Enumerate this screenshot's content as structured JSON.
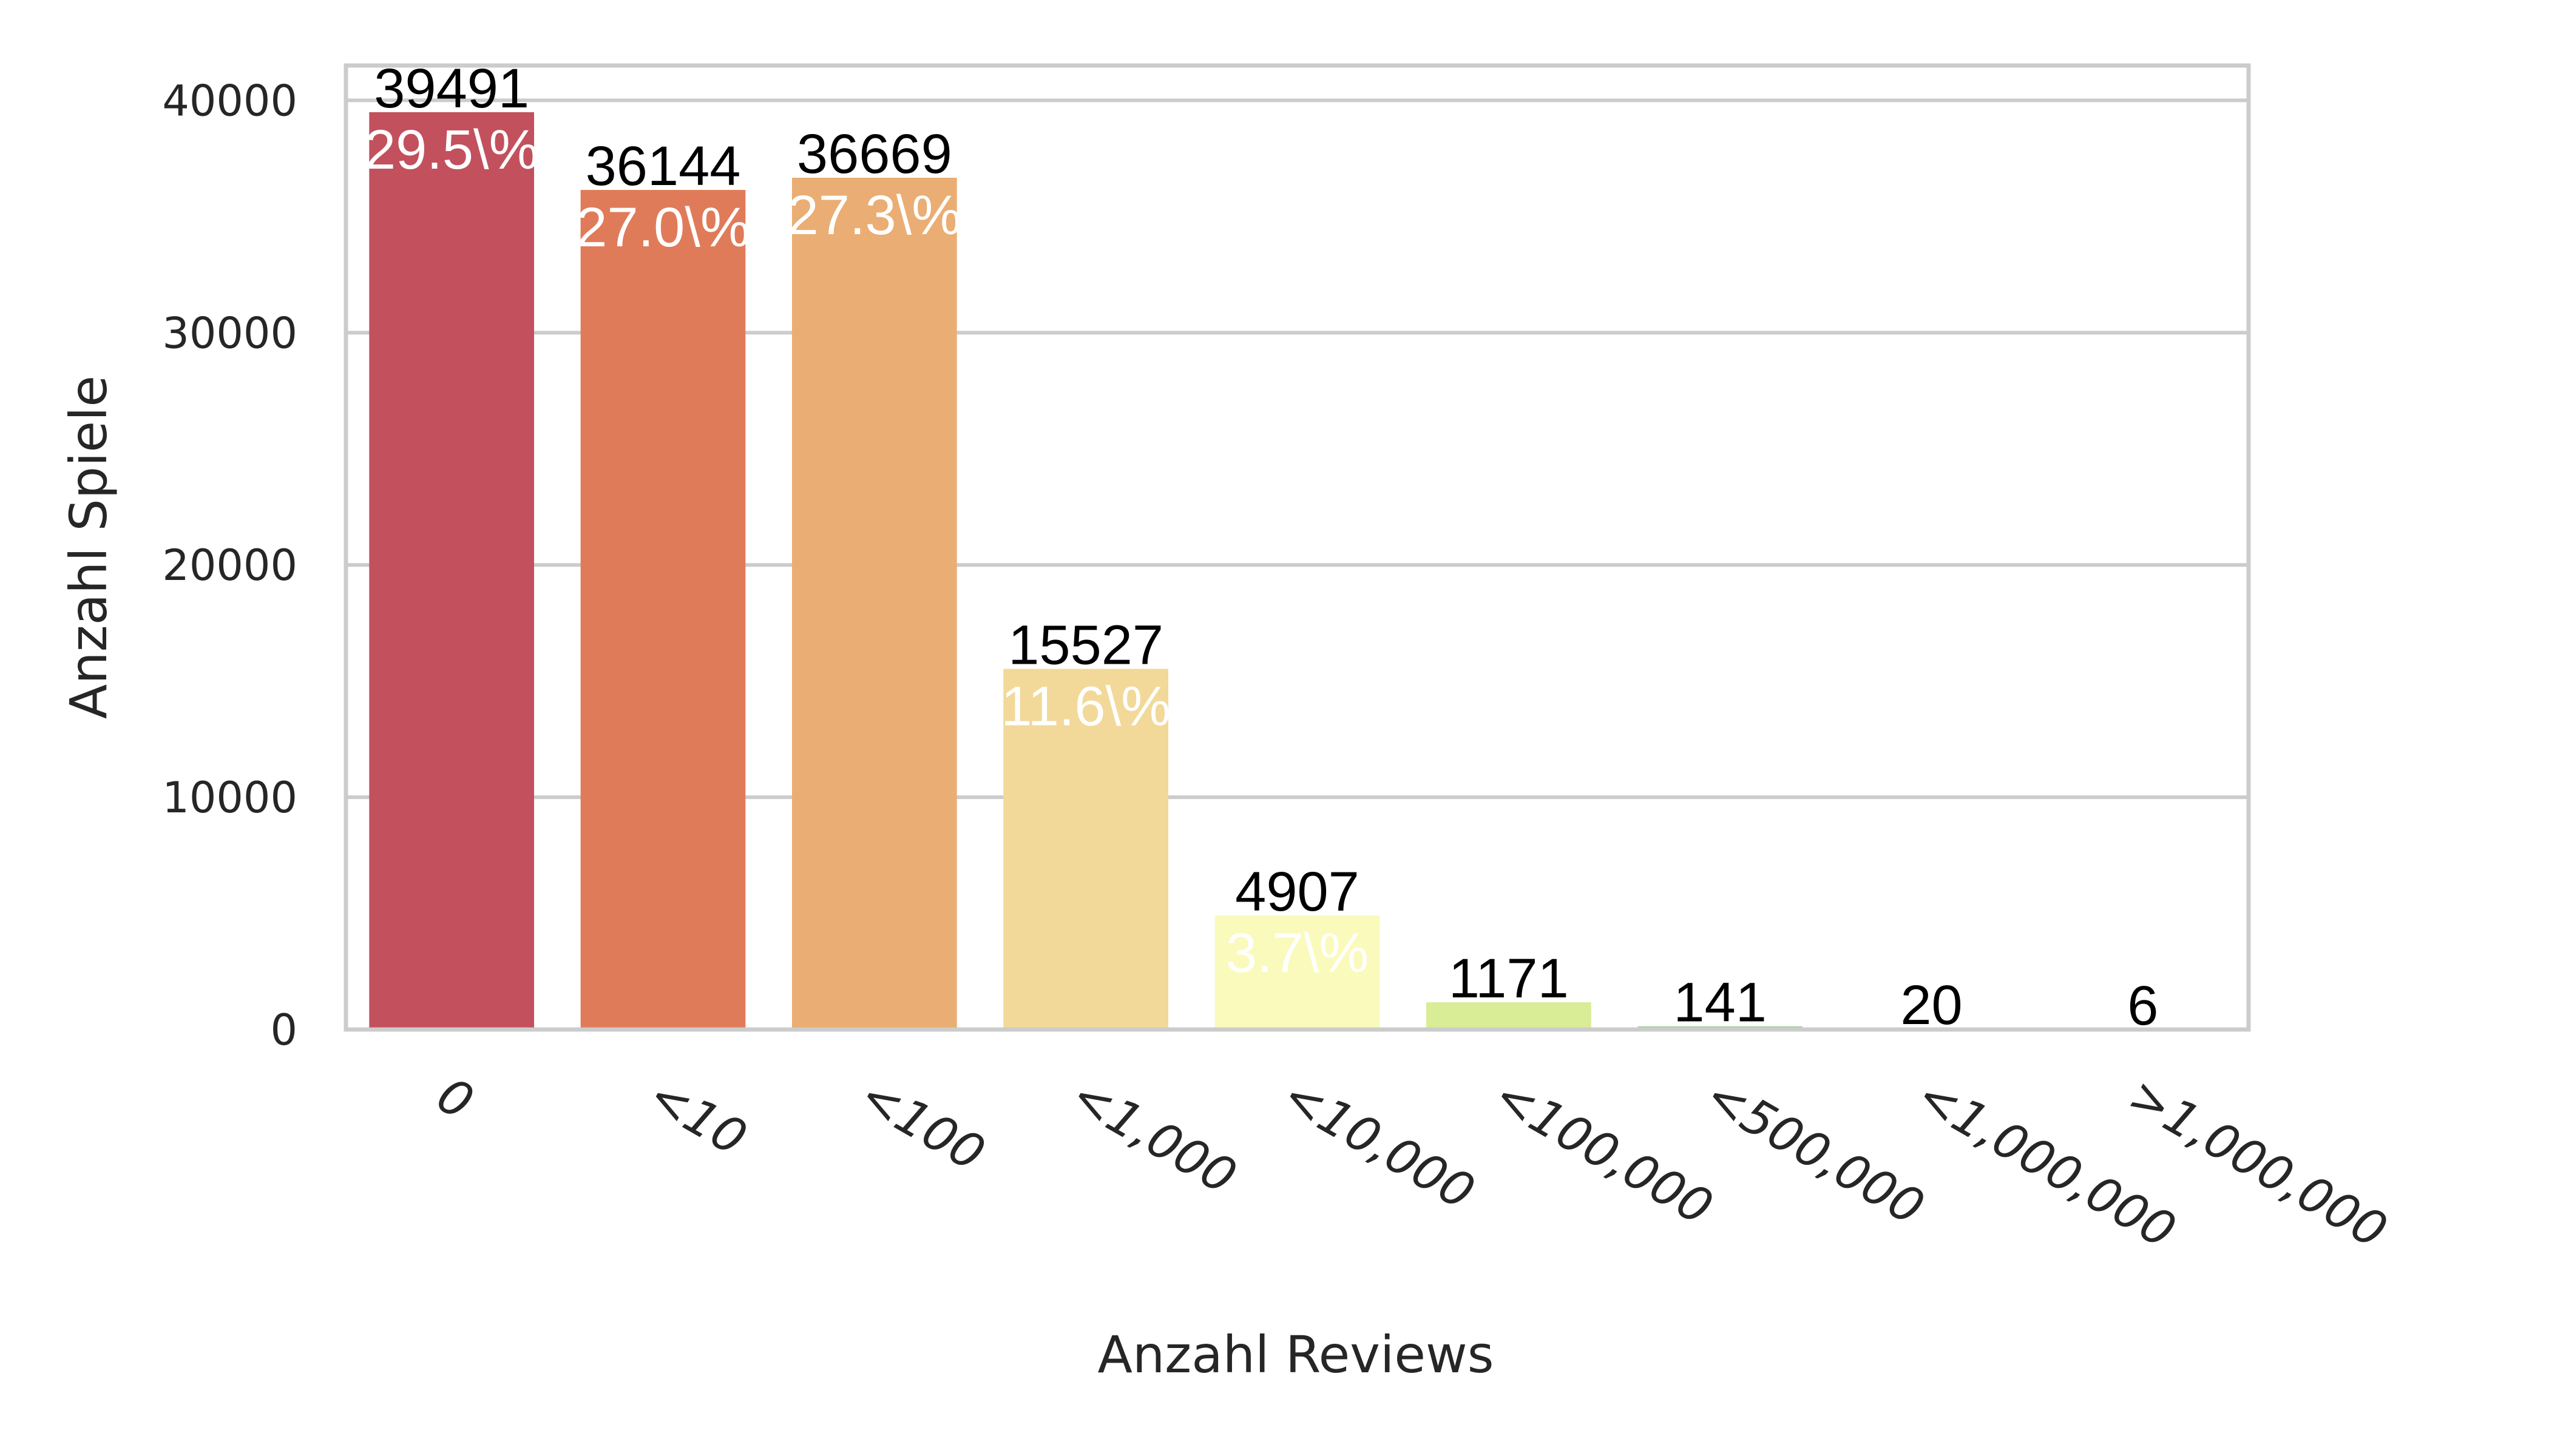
{
  "chart_data": {
    "type": "bar",
    "categories": [
      "0",
      "<10",
      "<100",
      "<1,000",
      "<10,000",
      "<100,000",
      "<500,000",
      "<1,000,000",
      ">1,000,000"
    ],
    "values": [
      39491,
      36144,
      36669,
      15527,
      4907,
      1171,
      141,
      20,
      6
    ],
    "count_labels": [
      "39491",
      "36144",
      "36669",
      "15527",
      "4907",
      "1171",
      "141",
      "20",
      "6"
    ],
    "percent_labels": [
      "29.5\\%",
      "27.0\\%",
      "27.3\\%",
      "11.6\\%",
      "3.7\\%",
      "",
      "",
      "",
      ""
    ],
    "colors": [
      "#c2515d",
      "#e07b5a",
      "#eaad73",
      "#f2d999",
      "#fafabc",
      "#d9ec96",
      "#a6d59f",
      "#67b9a9",
      "#5e7fb6"
    ],
    "xlabel": "Anzahl Reviews",
    "ylabel": "Anzahl Spiele",
    "ylim": [
      0,
      41500
    ],
    "yticks": [
      0,
      10000,
      20000,
      30000,
      40000
    ],
    "ytick_labels": [
      "0",
      "10000",
      "20000",
      "30000",
      "40000"
    ],
    "grid": true,
    "grid_axis": "y"
  }
}
